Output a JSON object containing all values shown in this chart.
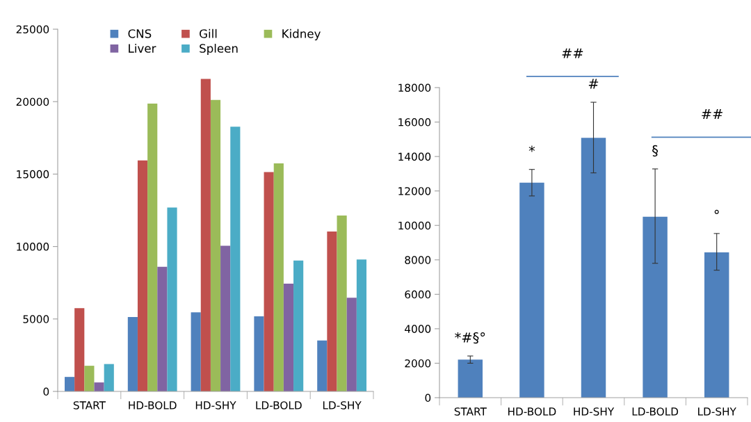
{
  "chart_data": [
    {
      "type": "bar",
      "categories": [
        "START",
        "HD-BOLD",
        "HD-SHY",
        "LD-BOLD",
        "LD-SHY"
      ],
      "ylim": [
        0,
        25000
      ],
      "yticks": [
        0,
        5000,
        10000,
        15000,
        20000,
        25000
      ],
      "grid": false,
      "legend": "top",
      "series": [
        {
          "name": "CNS",
          "color": "#4f81bd",
          "values": [
            1000,
            5140,
            5460,
            5180,
            3520
          ]
        },
        {
          "name": "Gill",
          "color": "#c0504d",
          "values": [
            5750,
            15940,
            21570,
            15140,
            11040
          ]
        },
        {
          "name": "Kidney",
          "color": "#9bbb59",
          "values": [
            1770,
            19860,
            20120,
            15740,
            12140
          ]
        },
        {
          "name": "Liver",
          "color": "#8064a2",
          "values": [
            620,
            8600,
            10050,
            7440,
            6470
          ]
        },
        {
          "name": "Spleen",
          "color": "#4bacc6",
          "values": [
            1890,
            12690,
            18270,
            9030,
            9100
          ]
        }
      ]
    },
    {
      "type": "bar",
      "categories": [
        "START",
        "HD-BOLD",
        "HD-SHY",
        "LD-BOLD",
        "LD-SHY"
      ],
      "ylim": [
        0,
        18000
      ],
      "yticks": [
        0,
        2000,
        4000,
        6000,
        8000,
        10000,
        12000,
        14000,
        16000,
        18000
      ],
      "grid": false,
      "series": [
        {
          "color": "#4f81bd",
          "values": [
            2210,
            12480,
            15080,
            10500,
            8440
          ],
          "errors": [
            [
              2000,
              2420
            ],
            [
              11710,
              13250
            ],
            [
              13050,
              17150
            ],
            [
              7800,
              13280
            ],
            [
              7400,
              9530
            ]
          ]
        }
      ],
      "annotations": [
        "*#§°",
        "*",
        "#",
        "§",
        "°",
        "##",
        "##"
      ]
    }
  ]
}
